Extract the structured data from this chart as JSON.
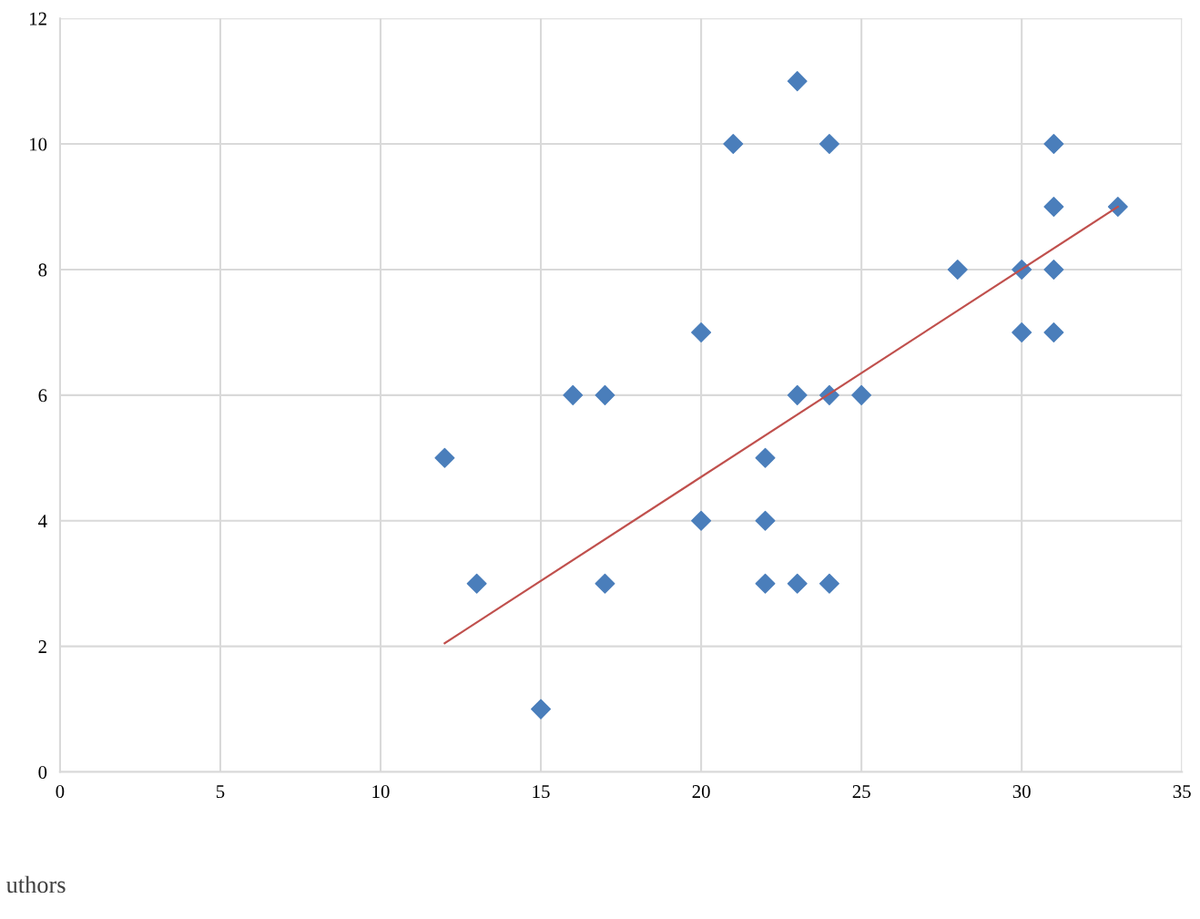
{
  "chart_data": {
    "type": "scatter",
    "xlim": [
      0,
      35
    ],
    "xticks": [
      0,
      5,
      10,
      15,
      20,
      25,
      30,
      35
    ],
    "ylim": [
      0,
      12
    ],
    "yticks": [
      0,
      2,
      4,
      6,
      8,
      10,
      12
    ],
    "grid": true,
    "legend": false,
    "series": [
      {
        "marker": "diamond",
        "color": "#4a7ebb",
        "x": [
          12,
          13,
          15,
          16,
          17,
          17,
          20,
          20,
          21,
          22,
          22,
          22,
          23,
          23,
          23,
          24,
          24,
          24,
          25,
          28,
          30,
          30,
          31,
          31,
          31,
          31,
          33
        ],
        "values": [
          5,
          3,
          1,
          6,
          6,
          3,
          7,
          4,
          10,
          5,
          4,
          3,
          11,
          6,
          3,
          10,
          6,
          3,
          6,
          8,
          8,
          7,
          10,
          9,
          8,
          7,
          9
        ]
      },
      {
        "type": "line",
        "marker": "none",
        "color": "#c0504d",
        "x": [
          12,
          33
        ],
        "values": [
          2.05,
          9.0
        ]
      }
    ],
    "annotations": [
      "uthors"
    ]
  }
}
